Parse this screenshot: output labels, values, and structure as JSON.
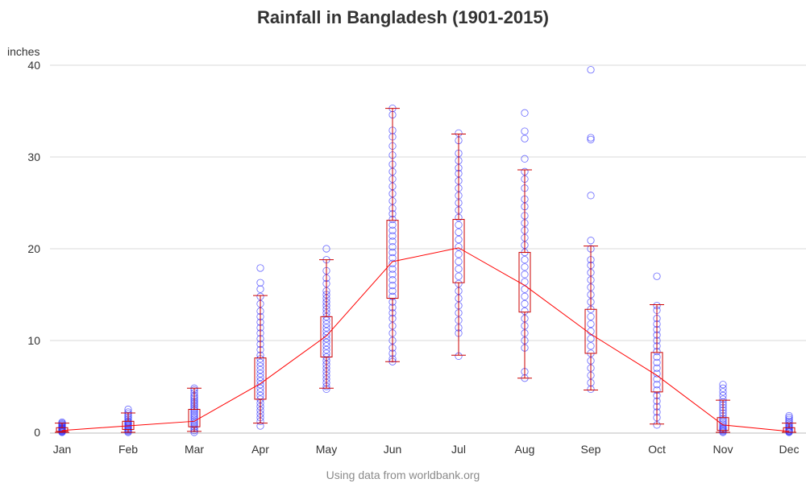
{
  "chart_data": {
    "type": "box",
    "title": "Rainfall in Bangladesh (1901-2015)",
    "ylabel": "inches",
    "xlabel": "",
    "footnote": "Using data from worldbank.org",
    "ylim": [
      0,
      40
    ],
    "yticks": [
      0,
      10,
      20,
      30,
      40
    ],
    "grid": true,
    "colors": {
      "points": "#3333ff",
      "boxes": "#cc0000",
      "median_line": "#ff0000",
      "grid": "#d9d9d9",
      "text": "#333333",
      "footnote": "#8a8a8a"
    },
    "categories": [
      "Jan",
      "Feb",
      "Mar",
      "Apr",
      "May",
      "Jun",
      "Jul",
      "Aug",
      "Sep",
      "Oct",
      "Nov",
      "Dec"
    ],
    "boxes": [
      {
        "whisker_low": 0.0,
        "q1": 0.1,
        "median": 0.2,
        "q3": 0.5,
        "whisker_high": 1.0
      },
      {
        "whisker_low": 0.0,
        "q1": 0.3,
        "median": 0.7,
        "q3": 1.2,
        "whisker_high": 2.1
      },
      {
        "whisker_low": 0.1,
        "q1": 0.6,
        "median": 1.2,
        "q3": 2.5,
        "whisker_high": 4.8
      },
      {
        "whisker_low": 1.0,
        "q1": 3.6,
        "median": 5.3,
        "q3": 8.1,
        "whisker_high": 14.9
      },
      {
        "whisker_low": 4.8,
        "q1": 8.2,
        "median": 10.5,
        "q3": 12.6,
        "whisker_high": 18.8
      },
      {
        "whisker_low": 7.7,
        "q1": 14.6,
        "median": 18.6,
        "q3": 23.1,
        "whisker_high": 35.3
      },
      {
        "whisker_low": 8.4,
        "q1": 16.3,
        "median": 20.1,
        "q3": 23.2,
        "whisker_high": 32.5
      },
      {
        "whisker_low": 5.9,
        "q1": 13.1,
        "median": 16.0,
        "q3": 19.6,
        "whisker_high": 28.6
      },
      {
        "whisker_low": 4.6,
        "q1": 8.6,
        "median": 10.7,
        "q3": 13.4,
        "whisker_high": 20.3
      },
      {
        "whisker_low": 0.9,
        "q1": 4.4,
        "median": 6.2,
        "q3": 8.7,
        "whisker_high": 13.9
      },
      {
        "whisker_low": 0.0,
        "q1": 0.2,
        "median": 0.8,
        "q3": 1.6,
        "whisker_high": 3.5
      },
      {
        "whisker_low": 0.0,
        "q1": 0.0,
        "median": 0.1,
        "q3": 0.5,
        "whisker_high": 1.0
      }
    ],
    "points": [
      [
        0.0,
        0.05,
        0.1,
        0.15,
        0.2,
        0.25,
        0.3,
        0.35,
        0.4,
        0.45,
        0.5,
        0.55,
        0.6,
        0.7,
        0.8,
        0.9,
        1.0,
        1.1
      ],
      [
        0.0,
        0.1,
        0.2,
        0.3,
        0.4,
        0.5,
        0.6,
        0.7,
        0.8,
        0.9,
        1.0,
        1.1,
        1.2,
        1.4,
        1.6,
        1.8,
        2.0,
        2.2,
        2.5
      ],
      [
        0.0,
        0.2,
        0.4,
        0.6,
        0.8,
        1.0,
        1.2,
        1.4,
        1.6,
        1.8,
        2.0,
        2.2,
        2.4,
        2.6,
        2.8,
        3.0,
        3.2,
        3.4,
        3.6,
        3.8,
        4.0,
        4.3,
        4.6,
        4.8
      ],
      [
        0.7,
        1.2,
        1.6,
        2.0,
        2.4,
        2.8,
        3.2,
        3.6,
        4.0,
        4.4,
        4.8,
        5.2,
        5.6,
        6.0,
        6.4,
        6.8,
        7.2,
        7.6,
        8.0,
        8.4,
        9.0,
        9.6,
        10.2,
        10.8,
        11.4,
        12.0,
        12.6,
        13.2,
        14.0,
        14.8,
        15.6,
        16.3,
        17.9
      ],
      [
        4.7,
        5.0,
        5.4,
        5.8,
        6.2,
        6.6,
        7.0,
        7.4,
        7.8,
        8.2,
        8.6,
        9.0,
        9.4,
        9.8,
        10.2,
        10.6,
        11.0,
        11.4,
        11.8,
        12.2,
        12.6,
        13.0,
        13.4,
        13.8,
        14.2,
        14.6,
        15.0,
        15.4,
        16.2,
        16.8,
        17.6,
        18.8,
        20.0
      ],
      [
        7.7,
        8.0,
        8.6,
        9.2,
        10.0,
        10.8,
        11.6,
        12.4,
        13.0,
        13.6,
        14.2,
        14.8,
        15.4,
        16.0,
        16.6,
        17.2,
        17.8,
        18.4,
        19.0,
        19.6,
        20.2,
        20.8,
        21.4,
        22.0,
        22.6,
        23.2,
        23.8,
        24.4,
        25.2,
        26.0,
        26.8,
        27.6,
        28.4,
        29.2,
        30.2,
        31.2,
        32.2,
        32.9,
        34.6,
        35.3
      ],
      [
        8.3,
        10.8,
        11.4,
        12.2,
        13.0,
        13.8,
        14.6,
        15.4,
        16.2,
        17.0,
        17.8,
        18.6,
        19.4,
        20.2,
        21.0,
        21.8,
        22.6,
        23.4,
        24.2,
        25.0,
        25.8,
        26.6,
        27.4,
        28.2,
        28.8,
        29.6,
        30.4,
        31.8,
        32.6
      ],
      [
        5.9,
        6.6,
        9.2,
        10.0,
        10.8,
        11.6,
        12.4,
        13.2,
        14.0,
        14.8,
        15.6,
        16.4,
        17.2,
        18.0,
        18.8,
        19.6,
        20.4,
        21.2,
        22.0,
        22.8,
        23.6,
        24.6,
        25.4,
        26.6,
        27.6,
        28.4,
        29.8,
        32.0,
        32.8,
        34.8
      ],
      [
        4.7,
        5.4,
        6.2,
        7.0,
        7.8,
        8.6,
        9.4,
        10.2,
        11.0,
        11.8,
        12.6,
        13.4,
        14.2,
        15.0,
        15.8,
        16.6,
        17.4,
        18.2,
        18.8,
        20.0,
        20.9,
        25.8,
        31.9,
        32.1,
        39.5
      ],
      [
        0.8,
        1.6,
        2.2,
        2.8,
        3.4,
        4.0,
        4.6,
        5.2,
        5.8,
        6.4,
        7.0,
        7.6,
        8.2,
        8.8,
        9.4,
        10.0,
        10.6,
        11.2,
        11.8,
        12.4,
        13.3,
        13.8,
        17.0
      ],
      [
        0.0,
        0.1,
        0.2,
        0.3,
        0.4,
        0.5,
        0.7,
        0.9,
        1.1,
        1.3,
        1.5,
        1.8,
        2.1,
        2.4,
        2.7,
        3.0,
        3.3,
        3.6,
        4.0,
        4.4,
        4.8,
        5.2
      ],
      [
        0.0,
        0.05,
        0.1,
        0.15,
        0.2,
        0.3,
        0.4,
        0.5,
        0.6,
        0.8,
        1.0,
        1.2,
        1.4,
        1.6,
        1.8
      ]
    ]
  }
}
